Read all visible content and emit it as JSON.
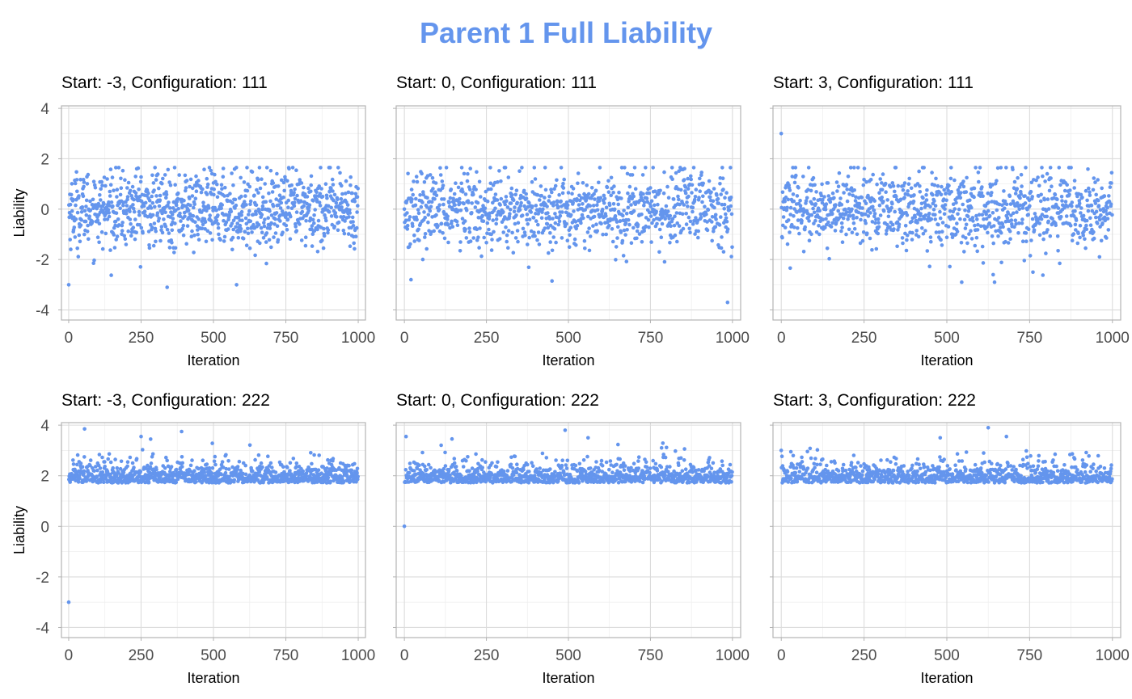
{
  "figure": {
    "title": "Parent 1 Full Liability",
    "point_color": "#6495ED",
    "title_color": "#6495ED"
  },
  "chart_data": [
    {
      "type": "scatter",
      "title": "Start: -3, Configuration: 111",
      "xlabel": "Iteration",
      "ylabel": "Liability",
      "xlim": [
        -25,
        1025
      ],
      "ylim": [
        -4.4,
        4.1
      ],
      "x_ticks": [
        "0",
        "250",
        "500",
        "750",
        "1000"
      ],
      "y_ticks": [
        "-4",
        "-2",
        "0",
        "2",
        "4"
      ],
      "grid": true,
      "n_points": 1000,
      "start_value": -3,
      "center": 0,
      "spread": 0.75,
      "range": [
        -3.1,
        1.65
      ],
      "notable_points": [
        [
          0,
          -3.0
        ],
        [
          340,
          -3.1
        ],
        [
          580,
          -3.0
        ],
        [
          235,
          1.6
        ]
      ]
    },
    {
      "type": "scatter",
      "title": "Start: 0, Configuration: 111",
      "xlabel": "Iteration",
      "ylabel": "",
      "xlim": [
        -25,
        1025
      ],
      "ylim": [
        -4.4,
        4.1
      ],
      "x_ticks": [
        "0",
        "250",
        "500",
        "750",
        "1000"
      ],
      "y_ticks": [
        "-4",
        "-2",
        "0",
        "2",
        "4"
      ],
      "grid": true,
      "n_points": 1000,
      "start_value": 0,
      "center": 0,
      "spread": 0.75,
      "range": [
        -2.9,
        1.65
      ],
      "notable_points": [
        [
          985,
          -3.7
        ],
        [
          450,
          -2.85
        ],
        [
          20,
          -2.8
        ]
      ]
    },
    {
      "type": "scatter",
      "title": "Start: 3, Configuration: 111",
      "xlabel": "Iteration",
      "ylabel": "",
      "xlim": [
        -25,
        1025
      ],
      "ylim": [
        -4.4,
        4.1
      ],
      "x_ticks": [
        "0",
        "250",
        "500",
        "750",
        "1000"
      ],
      "y_ticks": [
        "-4",
        "-2",
        "0",
        "2",
        "4"
      ],
      "grid": true,
      "n_points": 1000,
      "start_value": 3,
      "center": 0,
      "spread": 0.75,
      "range": [
        -2.9,
        1.65
      ],
      "notable_points": [
        [
          0,
          3.0
        ],
        [
          545,
          -2.9
        ],
        [
          640,
          -2.6
        ],
        [
          760,
          -2.5
        ]
      ]
    },
    {
      "type": "scatter",
      "title": "Start: -3, Configuration: 222",
      "xlabel": "Iteration",
      "ylabel": "Liability",
      "xlim": [
        -25,
        1025
      ],
      "ylim": [
        -4.4,
        4.1
      ],
      "x_ticks": [
        "0",
        "250",
        "500",
        "750",
        "1000"
      ],
      "y_ticks": [
        "-4",
        "-2",
        "0",
        "2",
        "4"
      ],
      "grid": true,
      "n_points": 1000,
      "start_value": -3,
      "floor": 1.72,
      "tail_scale": 0.35,
      "range": [
        1.72,
        3.85
      ],
      "notable_points": [
        [
          0,
          -3.0
        ],
        [
          55,
          3.85
        ],
        [
          390,
          3.75
        ],
        [
          250,
          3.55
        ]
      ]
    },
    {
      "type": "scatter",
      "title": "Start: 0, Configuration: 222",
      "xlabel": "Iteration",
      "ylabel": "",
      "xlim": [
        -25,
        1025
      ],
      "ylim": [
        -4.4,
        4.1
      ],
      "x_ticks": [
        "0",
        "250",
        "500",
        "750",
        "1000"
      ],
      "y_ticks": [
        "-4",
        "-2",
        "0",
        "2",
        "4"
      ],
      "grid": true,
      "n_points": 1000,
      "start_value": 0,
      "floor": 1.72,
      "tail_scale": 0.35,
      "range": [
        1.72,
        3.8
      ],
      "notable_points": [
        [
          0,
          0.0
        ],
        [
          5,
          3.55
        ],
        [
          490,
          3.8
        ],
        [
          560,
          3.5
        ]
      ]
    },
    {
      "type": "scatter",
      "title": "Start: 3, Configuration: 222",
      "xlabel": "Iteration",
      "ylabel": "",
      "xlim": [
        -25,
        1025
      ],
      "ylim": [
        -4.4,
        4.1
      ],
      "x_ticks": [
        "0",
        "250",
        "500",
        "750",
        "1000"
      ],
      "y_ticks": [
        "-4",
        "-2",
        "0",
        "2",
        "4"
      ],
      "grid": true,
      "n_points": 1000,
      "start_value": 3,
      "floor": 1.72,
      "tail_scale": 0.35,
      "range": [
        1.72,
        3.95
      ],
      "notable_points": [
        [
          0,
          3.0
        ],
        [
          625,
          3.9
        ],
        [
          480,
          3.5
        ],
        [
          680,
          3.55
        ]
      ]
    }
  ]
}
